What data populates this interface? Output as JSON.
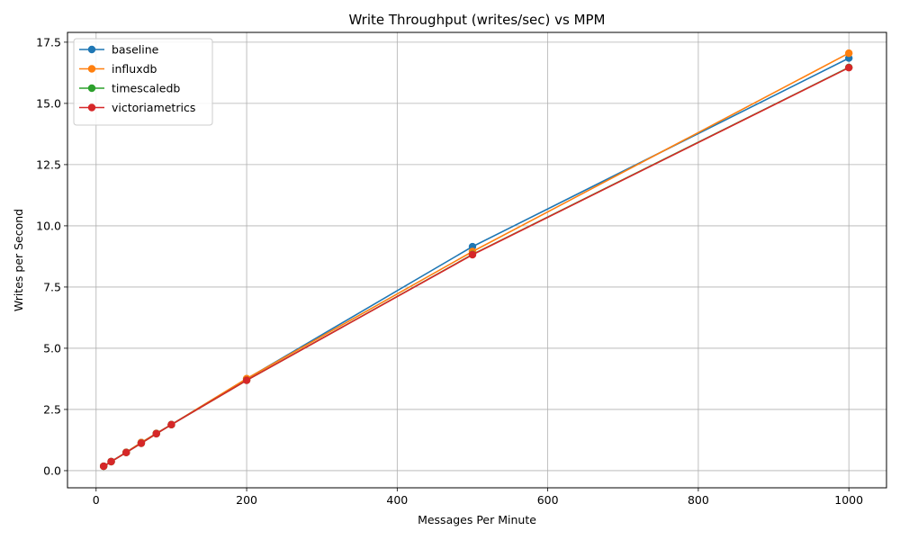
{
  "chart_data": {
    "type": "line",
    "title": "Write Throughput (writes/sec) vs MPM",
    "xlabel": "Messages Per Minute",
    "ylabel": "Writes per Second",
    "xlim": [
      -38,
      1050
    ],
    "ylim": [
      -0.7,
      17.9
    ],
    "xticks": [
      0,
      200,
      400,
      600,
      800,
      1000
    ],
    "yticks": [
      0.0,
      2.5,
      5.0,
      7.5,
      10.0,
      12.5,
      15.0,
      17.5
    ],
    "xtick_labels": [
      "0",
      "200",
      "400",
      "600",
      "800",
      "1000"
    ],
    "ytick_labels": [
      "0.0",
      "2.5",
      "5.0",
      "7.5",
      "10.0",
      "12.5",
      "15.0",
      "17.5"
    ],
    "grid": true,
    "legend_position": "top-left",
    "x": [
      10,
      20,
      40,
      60,
      80,
      100,
      200,
      500,
      1000
    ],
    "series": [
      {
        "name": "baseline",
        "color": "#1f77b4",
        "values": [
          0.18,
          0.37,
          0.75,
          1.15,
          1.52,
          1.88,
          3.75,
          9.15,
          16.85
        ]
      },
      {
        "name": "influxdb",
        "color": "#ff7f0e",
        "values": [
          0.18,
          0.37,
          0.75,
          1.15,
          1.52,
          1.88,
          3.76,
          8.95,
          17.05
        ]
      },
      {
        "name": "timescaledb",
        "color": "#2ca02c",
        "values": [
          0.18,
          0.37,
          0.74,
          1.12,
          1.51,
          1.88,
          3.69,
          8.83,
          16.47
        ]
      },
      {
        "name": "victoriametrics",
        "color": "#d62728",
        "values": [
          0.18,
          0.37,
          0.74,
          1.12,
          1.51,
          1.88,
          3.69,
          8.82,
          16.46
        ]
      }
    ]
  }
}
